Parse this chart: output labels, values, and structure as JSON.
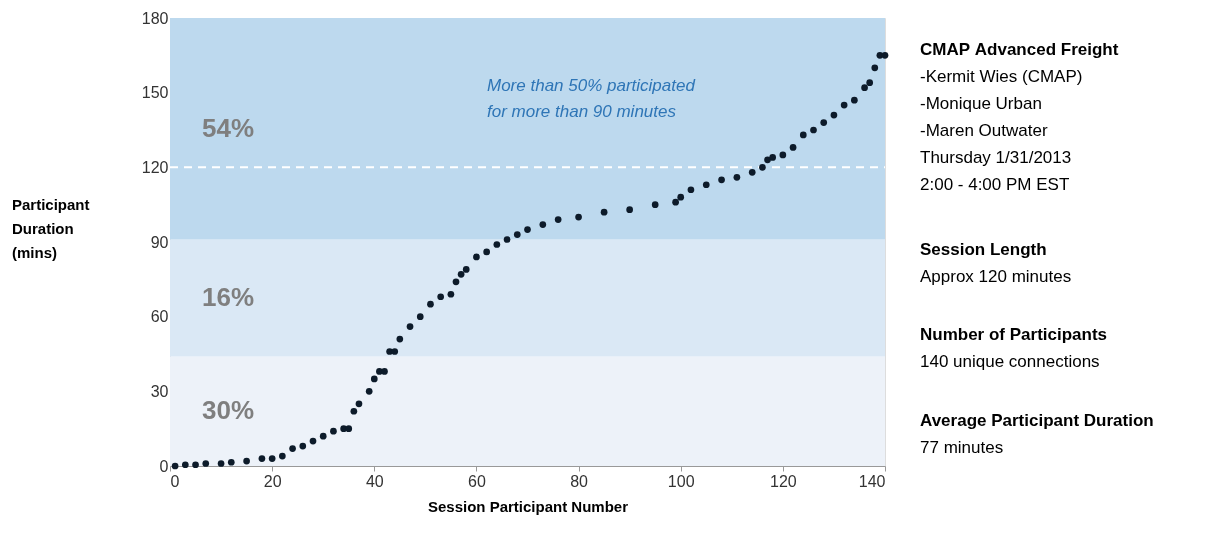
{
  "chart_data": {
    "type": "scatter",
    "xlabel": "Session Participant Number",
    "ylabel": "Participant Duration (mins)",
    "x": [
      1,
      3,
      5,
      7,
      10,
      12,
      15,
      18,
      20,
      22,
      24,
      26,
      28,
      30,
      32,
      34,
      35,
      36,
      37,
      39,
      40,
      41,
      42,
      43,
      44,
      45,
      47,
      49,
      51,
      53,
      55,
      56,
      57,
      58,
      60,
      62,
      64,
      66,
      68,
      70,
      73,
      76,
      80,
      85,
      90,
      95,
      99,
      100,
      102,
      105,
      108,
      111,
      114,
      116,
      117,
      118,
      120,
      122,
      124,
      126,
      128,
      130,
      132,
      134,
      136,
      137,
      138,
      139,
      140
    ],
    "series": [
      {
        "color": "#0d1b2a",
        "values": [
          0,
          0.5,
          0.5,
          1,
          1,
          1.5,
          2,
          3,
          3,
          4,
          7,
          8,
          10,
          12,
          14,
          15,
          15,
          22,
          25,
          30,
          35,
          38,
          38,
          46,
          46,
          51,
          56,
          60,
          65,
          68,
          69,
          74,
          77,
          79,
          84,
          86,
          89,
          91,
          93,
          95,
          97,
          99,
          100,
          102,
          103,
          105,
          106,
          108,
          111,
          113,
          115,
          116,
          118,
          120,
          123,
          124,
          125,
          128,
          133,
          135,
          138,
          141,
          145,
          147,
          152,
          154,
          160,
          165,
          165
        ]
      }
    ],
    "marker": "circle",
    "xlim": [
      0,
      140
    ],
    "ylim": [
      0,
      180
    ],
    "xticks": [
      0,
      20,
      40,
      60,
      80,
      100,
      120,
      140
    ],
    "yticks": [
      0,
      30,
      60,
      90,
      120,
      150,
      180
    ],
    "grid": false,
    "bands": [
      {
        "axis": "y",
        "from": 0,
        "to": 44,
        "label": "30%",
        "color": "#edf2f9"
      },
      {
        "axis": "y",
        "from": 44,
        "to": 91,
        "label": "16%",
        "color": "#dae8f5"
      },
      {
        "axis": "y",
        "from": 91,
        "to": 180,
        "label": "54%",
        "color": "#bdd9ee"
      }
    ],
    "ref_lines": [
      {
        "axis": "y",
        "value": 120,
        "color": "#ffffff",
        "line_style": "dashed"
      }
    ],
    "annotations": [
      "More than 50% participated\nfor more than 90 minutes",
      "CMAP Advanced Freight\n-Kermit Wies (CMAP)\n-Monique Urban\n-Maren Outwater\n  Thursday 1/31/2013\n  2:00 - 4:00 PM EST",
      "Session Length\nApprox 120 minutes",
      "Number of Participants\n140 unique connections",
      "Average Participant Duration\n77 minutes"
    ]
  }
}
